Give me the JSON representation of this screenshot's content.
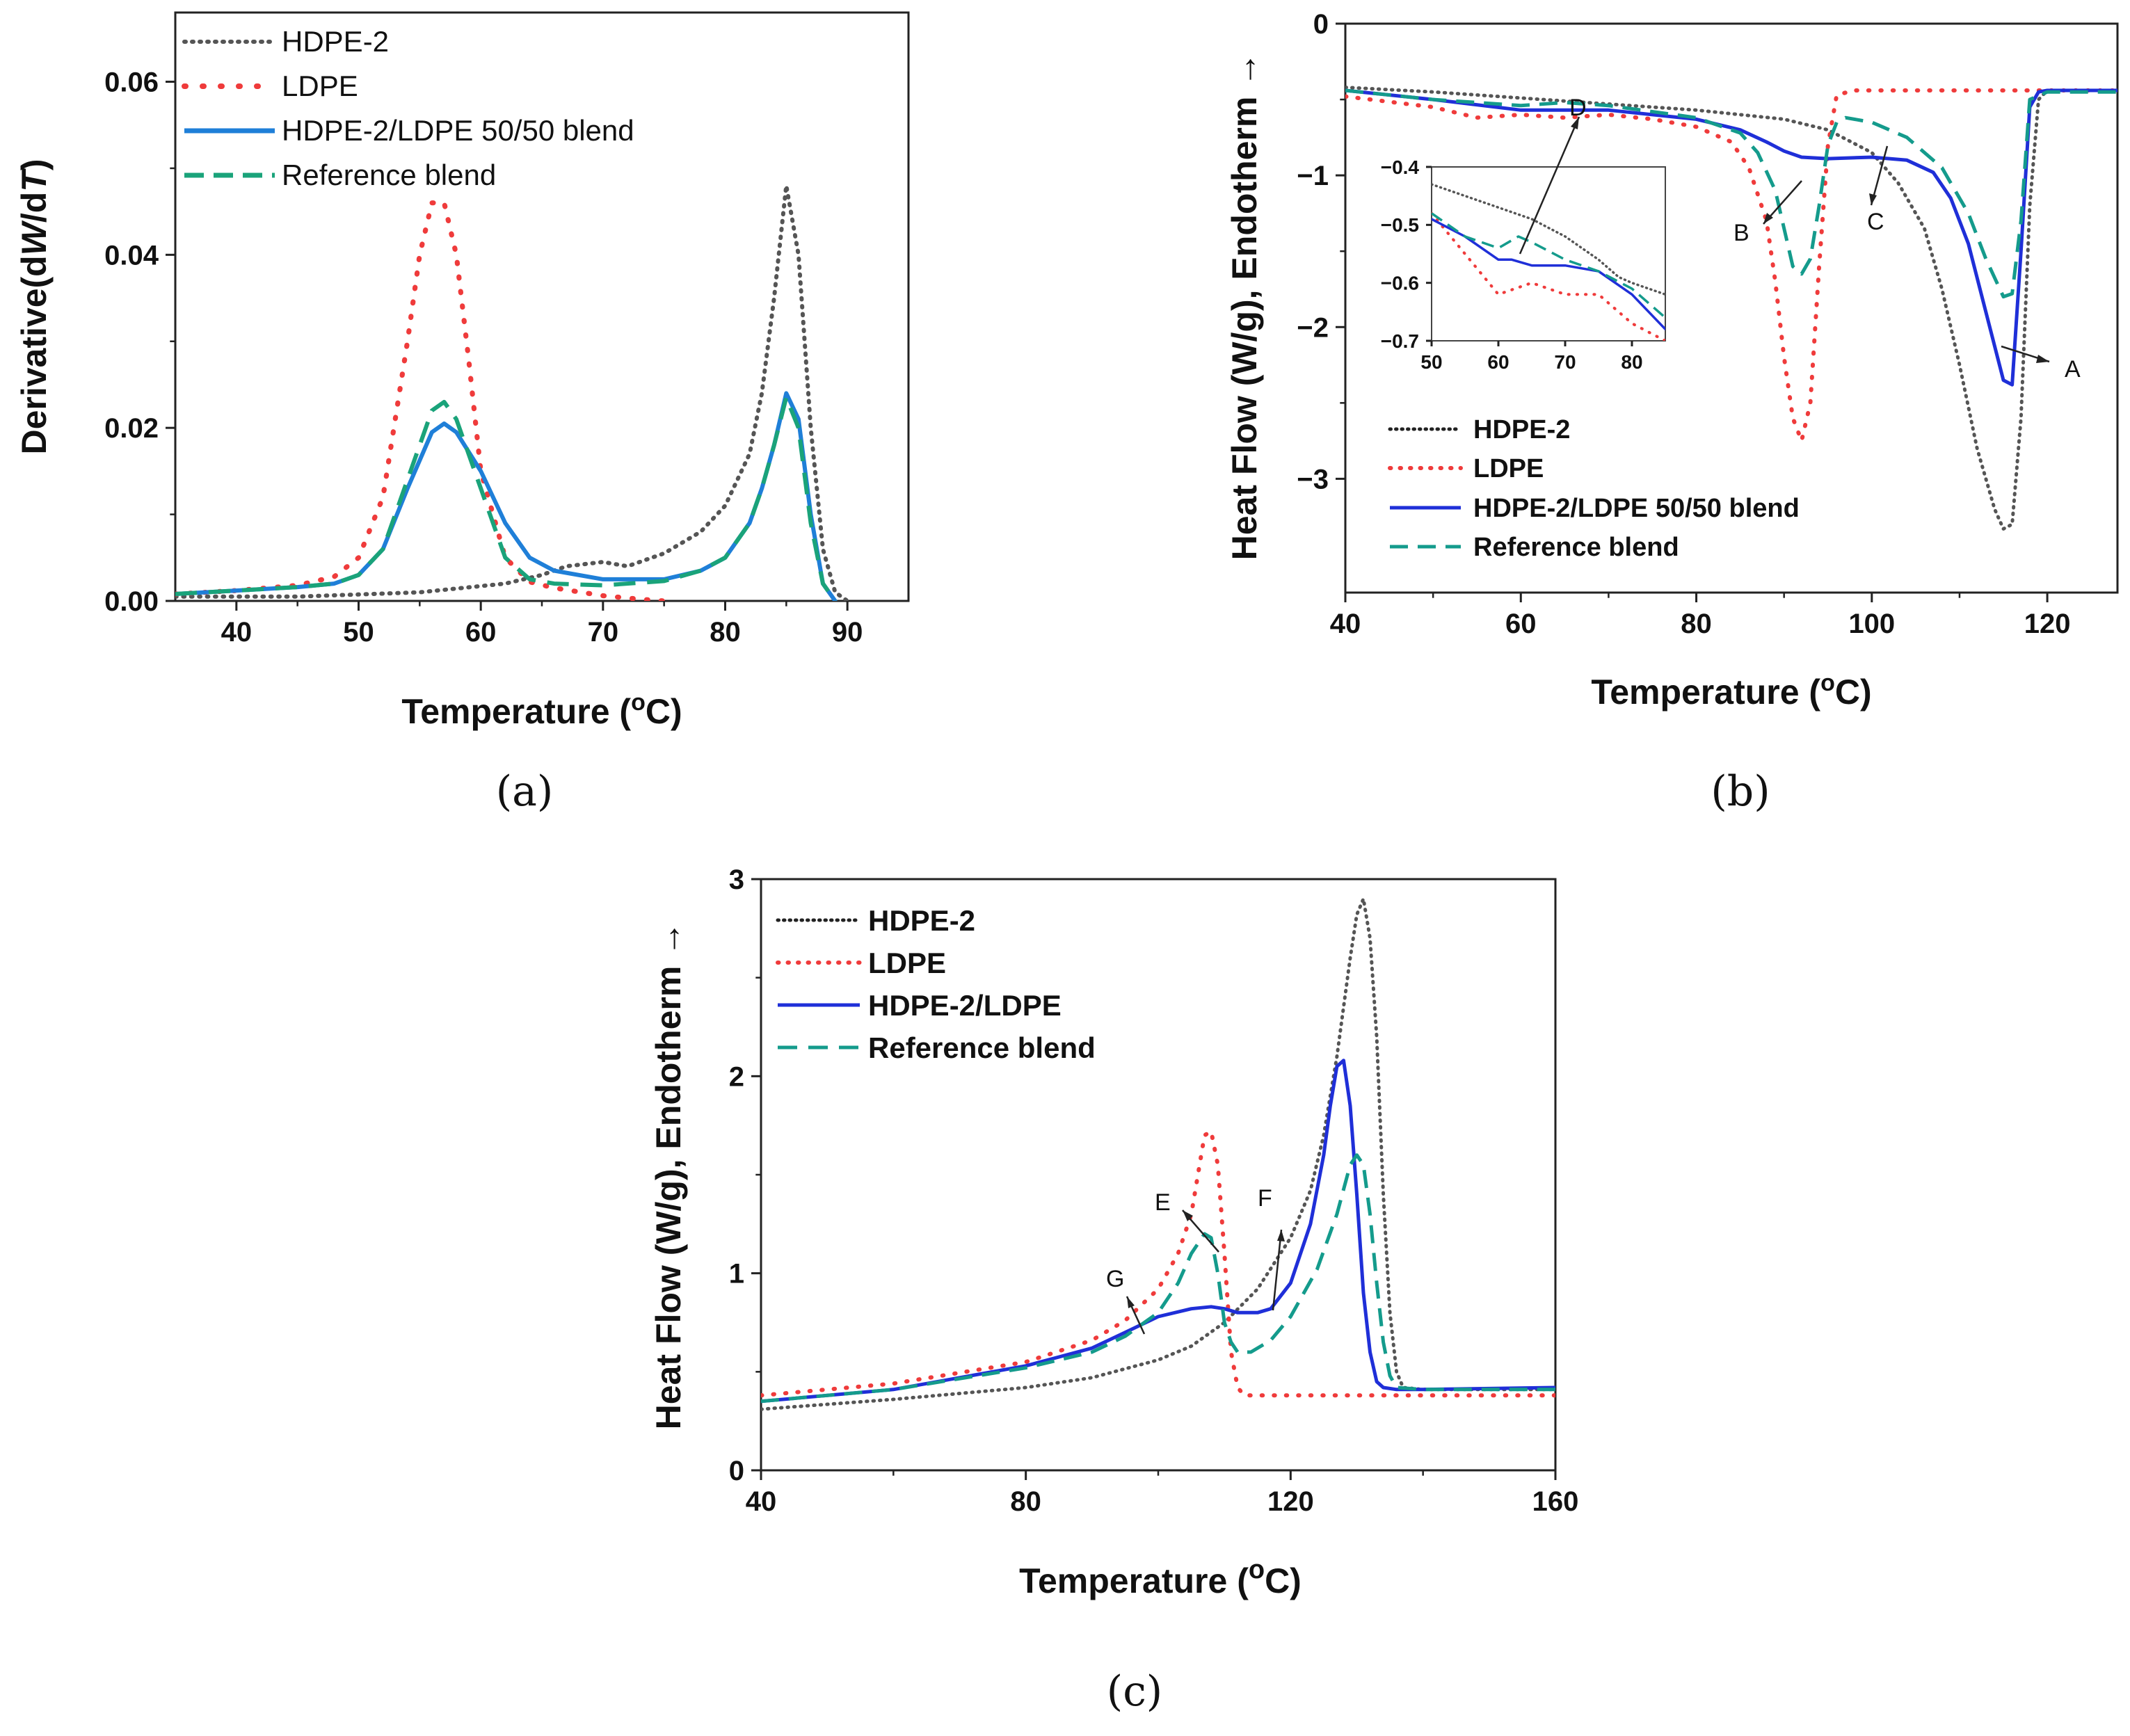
{
  "colors": {
    "HDPE-2": "#555555",
    "LDPE": "#ef3b3b",
    "blend_a": "#1f7fd8",
    "blend_bc": "#1f2fd8",
    "Reference blend": "#149b8c",
    "ref_a": "#1aa37a"
  },
  "chart_data": [
    {
      "panel": "(a)",
      "type": "line",
      "xlabel": "Temperature (oC)",
      "ylabel": "Derivative(dW/dT)",
      "xlim": [
        35,
        95
      ],
      "ylim": [
        0,
        0.068
      ],
      "xticks": [
        "40",
        "50",
        "60",
        "70",
        "80",
        "90"
      ],
      "yticks": [
        "0.00",
        "0.02",
        "0.04",
        "0.06"
      ],
      "legend_position": "top-left",
      "series": [
        {
          "name": "HDPE-2",
          "style": "dotted",
          "color_key": "HDPE-2",
          "x": [
            35,
            45,
            55,
            62,
            65,
            67,
            70,
            72,
            75,
            78,
            80,
            82,
            83,
            84,
            85,
            86,
            87,
            88,
            89,
            90
          ],
          "y": [
            0.0005,
            0.0005,
            0.001,
            0.002,
            0.003,
            0.004,
            0.0045,
            0.004,
            0.0055,
            0.008,
            0.011,
            0.017,
            0.024,
            0.035,
            0.048,
            0.04,
            0.02,
            0.006,
            0.001,
            0
          ]
        },
        {
          "name": "LDPE",
          "style": "dotted",
          "color_key": "LDPE",
          "x": [
            35,
            40,
            45,
            48,
            50,
            52,
            54,
            55,
            56,
            57,
            58,
            59,
            60,
            62,
            64,
            66,
            70,
            73,
            75
          ],
          "y": [
            0.0008,
            0.0012,
            0.0018,
            0.0028,
            0.005,
            0.012,
            0.03,
            0.04,
            0.046,
            0.046,
            0.04,
            0.028,
            0.015,
            0.005,
            0.0022,
            0.0015,
            0.0006,
            0.0002,
            0
          ]
        },
        {
          "name": "HDPE-2/LDPE 50/50 blend",
          "style": "solid",
          "color_key": "blend_a",
          "x": [
            35,
            40,
            45,
            48,
            50,
            52,
            54,
            56,
            57,
            58,
            60,
            62,
            64,
            66,
            70,
            75,
            78,
            80,
            82,
            83,
            84,
            85,
            86,
            87,
            88,
            89
          ],
          "y": [
            0.0008,
            0.0012,
            0.0016,
            0.002,
            0.003,
            0.006,
            0.013,
            0.0195,
            0.0205,
            0.0195,
            0.015,
            0.009,
            0.005,
            0.0035,
            0.0025,
            0.0025,
            0.0035,
            0.005,
            0.009,
            0.013,
            0.018,
            0.024,
            0.021,
            0.01,
            0.002,
            0
          ]
        },
        {
          "name": "Reference blend",
          "style": "dashed",
          "color_key": "ref_a",
          "x": [
            35,
            40,
            45,
            48,
            50,
            52,
            54,
            56,
            57,
            58,
            60,
            62,
            64,
            66,
            70,
            75,
            78,
            80,
            82,
            83,
            84,
            85,
            86,
            87,
            88,
            89
          ],
          "y": [
            0.0008,
            0.0012,
            0.0016,
            0.002,
            0.003,
            0.006,
            0.014,
            0.022,
            0.023,
            0.021,
            0.013,
            0.005,
            0.0025,
            0.002,
            0.0018,
            0.0023,
            0.0035,
            0.005,
            0.009,
            0.013,
            0.018,
            0.0235,
            0.02,
            0.009,
            0.002,
            0
          ]
        }
      ]
    },
    {
      "panel": "(b)",
      "type": "line",
      "xlabel": "Temperature (oC)",
      "ylabel": "Heat Flow (W/g), Endotherm",
      "xlim": [
        40,
        128
      ],
      "ylim": [
        -3.75,
        0
      ],
      "xticks": [
        "40",
        "60",
        "80",
        "100",
        "120"
      ],
      "yticks": [
        "0",
        "−1",
        "−2",
        "−3"
      ],
      "legend_position": "bottom-left",
      "annotations": [
        "A",
        "B",
        "C",
        "D"
      ],
      "series": [
        {
          "name": "HDPE-2",
          "style": "dotted",
          "color_key": "HDPE-2",
          "x": [
            40,
            50,
            60,
            70,
            80,
            90,
            95,
            100,
            103,
            106,
            108,
            110,
            112,
            114,
            115,
            116,
            117,
            118,
            119,
            120,
            125,
            128
          ],
          "y": [
            -0.42,
            -0.45,
            -0.49,
            -0.53,
            -0.57,
            -0.63,
            -0.7,
            -0.85,
            -1.05,
            -1.35,
            -1.75,
            -2.25,
            -2.8,
            -3.2,
            -3.33,
            -3.3,
            -2.6,
            -1.2,
            -0.5,
            -0.44,
            -0.44,
            -0.44
          ]
        },
        {
          "name": "LDPE",
          "style": "dotted",
          "color_key": "LDPE",
          "x": [
            40,
            50,
            55,
            60,
            65,
            70,
            75,
            80,
            84,
            86,
            88,
            89,
            90,
            91,
            92,
            93,
            94,
            95,
            96,
            98,
            100,
            110,
            120,
            128
          ],
          "y": [
            -0.48,
            -0.55,
            -0.62,
            -0.6,
            -0.62,
            -0.6,
            -0.63,
            -0.68,
            -0.78,
            -0.95,
            -1.3,
            -1.7,
            -2.2,
            -2.6,
            -2.75,
            -2.5,
            -1.6,
            -0.8,
            -0.47,
            -0.44,
            -0.44,
            -0.44,
            -0.44,
            -0.44
          ]
        },
        {
          "name": "HDPE-2/LDPE 50/50 blend",
          "style": "solid",
          "color_key": "blend_bc",
          "x": [
            40,
            50,
            60,
            70,
            80,
            85,
            88,
            90,
            92,
            95,
            100,
            104,
            107,
            109,
            111,
            113,
            115,
            116,
            117,
            118,
            119,
            120,
            128
          ],
          "y": [
            -0.44,
            -0.5,
            -0.57,
            -0.57,
            -0.63,
            -0.7,
            -0.78,
            -0.84,
            -0.88,
            -0.89,
            -0.88,
            -0.9,
            -0.98,
            -1.15,
            -1.45,
            -1.9,
            -2.35,
            -2.38,
            -1.5,
            -0.55,
            -0.45,
            -0.44,
            -0.44
          ]
        },
        {
          "name": "Reference blend",
          "style": "dashed",
          "color_key": "Reference blend",
          "x": [
            40,
            50,
            60,
            65,
            70,
            80,
            85,
            87,
            89,
            90,
            91,
            92,
            93,
            94,
            95,
            96,
            97,
            100,
            104,
            108,
            111,
            113,
            115,
            116,
            117,
            118,
            120,
            128
          ],
          "y": [
            -0.44,
            -0.5,
            -0.54,
            -0.52,
            -0.54,
            -0.62,
            -0.72,
            -0.85,
            -1.1,
            -1.35,
            -1.6,
            -1.65,
            -1.55,
            -1.2,
            -0.8,
            -0.65,
            -0.62,
            -0.65,
            -0.75,
            -0.95,
            -1.25,
            -1.55,
            -1.8,
            -1.78,
            -1.3,
            -0.5,
            -0.45,
            -0.45
          ]
        }
      ],
      "inset": {
        "xlim": [
          50,
          85
        ],
        "ylim": [
          -0.7,
          -0.4
        ],
        "xticks": [
          "50",
          "60",
          "70",
          "80"
        ],
        "yticks": [
          "−0.4",
          "−0.5",
          "−0.6",
          "−0.7"
        ],
        "series": [
          {
            "name": "HDPE-2",
            "style": "dotted",
            "color_key": "HDPE-2",
            "x": [
              50,
              55,
              60,
              65,
              70,
              75,
              78,
              80,
              85
            ],
            "y": [
              -0.43,
              -0.45,
              -0.47,
              -0.49,
              -0.52,
              -0.56,
              -0.59,
              -0.6,
              -0.62
            ]
          },
          {
            "name": "LDPE",
            "style": "dotted",
            "color_key": "LDPE",
            "x": [
              50,
              55,
              60,
              65,
              70,
              75,
              80,
              85
            ],
            "y": [
              -0.48,
              -0.55,
              -0.62,
              -0.6,
              -0.62,
              -0.62,
              -0.67,
              -0.7
            ]
          },
          {
            "name": "HDPE-2/LDPE 50/50 blend",
            "style": "solid",
            "color_key": "blend_bc",
            "x": [
              50,
              55,
              60,
              62,
              65,
              70,
              75,
              80,
              85
            ],
            "y": [
              -0.49,
              -0.52,
              -0.56,
              -0.56,
              -0.57,
              -0.57,
              -0.58,
              -0.62,
              -0.68
            ]
          },
          {
            "name": "Reference blend",
            "style": "dashed",
            "color_key": "Reference blend",
            "x": [
              50,
              55,
              60,
              63,
              65,
              70,
              75,
              80,
              85
            ],
            "y": [
              -0.48,
              -0.52,
              -0.54,
              -0.52,
              -0.53,
              -0.56,
              -0.58,
              -0.61,
              -0.66
            ]
          }
        ]
      }
    },
    {
      "panel": "(c)",
      "type": "line",
      "xlabel": "Temperature (oC)",
      "ylabel": "Heat Flow (W/g), Endotherm",
      "xlim": [
        40,
        160
      ],
      "ylim": [
        0,
        3
      ],
      "xticks": [
        "40",
        "80",
        "120",
        "160"
      ],
      "yticks": [
        "0",
        "1",
        "2",
        "3"
      ],
      "legend_position": "top-left",
      "annotations": [
        "E",
        "F",
        "G"
      ],
      "series": [
        {
          "name": "HDPE-2",
          "style": "dotted",
          "color_key": "HDPE-2",
          "x": [
            40,
            60,
            80,
            90,
            100,
            105,
            110,
            115,
            120,
            123,
            125,
            127,
            129,
            130,
            131,
            132,
            133,
            134,
            135,
            136,
            137,
            140,
            160
          ],
          "y": [
            0.31,
            0.36,
            0.42,
            0.47,
            0.56,
            0.63,
            0.75,
            0.92,
            1.18,
            1.42,
            1.7,
            2.1,
            2.6,
            2.82,
            2.9,
            2.7,
            2.2,
            1.4,
            0.8,
            0.5,
            0.42,
            0.41,
            0.41
          ]
        },
        {
          "name": "LDPE",
          "style": "dotted",
          "color_key": "LDPE",
          "x": [
            40,
            60,
            80,
            90,
            95,
            100,
            103,
            105,
            106,
            107,
            108,
            109,
            110,
            111,
            112,
            113,
            115,
            120,
            140,
            160
          ],
          "y": [
            0.38,
            0.44,
            0.55,
            0.66,
            0.76,
            0.92,
            1.1,
            1.3,
            1.5,
            1.7,
            1.72,
            1.55,
            1.1,
            0.6,
            0.42,
            0.38,
            0.38,
            0.38,
            0.38,
            0.38
          ]
        },
        {
          "name": "HDPE-2/LDPE",
          "style": "solid",
          "color_key": "blend_bc",
          "x": [
            40,
            60,
            80,
            90,
            95,
            100,
            105,
            108,
            110,
            112,
            115,
            117,
            120,
            123,
            125,
            126,
            127,
            128,
            129,
            130,
            131,
            132,
            133,
            134,
            136,
            140,
            160
          ],
          "y": [
            0.35,
            0.41,
            0.53,
            0.62,
            0.7,
            0.78,
            0.82,
            0.83,
            0.82,
            0.8,
            0.8,
            0.82,
            0.95,
            1.25,
            1.6,
            1.85,
            2.05,
            2.08,
            1.85,
            1.4,
            0.9,
            0.6,
            0.45,
            0.42,
            0.41,
            0.41,
            0.42
          ]
        },
        {
          "name": "Reference blend",
          "style": "dashed",
          "color_key": "Reference blend",
          "x": [
            40,
            60,
            80,
            90,
            95,
            100,
            103,
            105,
            107,
            108,
            109,
            110,
            111,
            112,
            114,
            117,
            120,
            124,
            127,
            129,
            130,
            131,
            132,
            133,
            134,
            135,
            136,
            140,
            160
          ],
          "y": [
            0.35,
            0.41,
            0.52,
            0.6,
            0.68,
            0.8,
            0.95,
            1.1,
            1.2,
            1.18,
            1.0,
            0.75,
            0.65,
            0.6,
            0.6,
            0.66,
            0.78,
            1.02,
            1.3,
            1.55,
            1.6,
            1.55,
            1.3,
            0.95,
            0.65,
            0.48,
            0.42,
            0.41,
            0.41
          ]
        }
      ]
    }
  ],
  "legends": {
    "a": [
      "HDPE-2",
      "LDPE",
      "HDPE-2/LDPE 50/50 blend",
      "Reference blend"
    ],
    "b": [
      "HDPE-2",
      "LDPE",
      "HDPE-2/LDPE 50/50 blend",
      "Reference blend"
    ],
    "c": [
      "HDPE-2",
      "LDPE",
      "HDPE-2/LDPE",
      "Reference blend"
    ]
  },
  "captions": {
    "a": "(a)",
    "b": "(b)",
    "c": "(c)"
  },
  "annot": {
    "A": "A",
    "B": "B",
    "C": "C",
    "D": "D",
    "E": "E",
    "F": "F",
    "G": "G"
  },
  "axis_text": {
    "a_ylabel_pre": "Derivative(d",
    "a_ylabel_W": "W",
    "a_ylabel_mid": "/d",
    "a_ylabel_T": "T",
    "a_ylabel_post": ")",
    "temp_pre": "Temperature (",
    "temp_sup": "o",
    "temp_post": "C)",
    "hf_ylabel": "Heat Flow (W/g), Endotherm",
    "arrow": "→"
  }
}
